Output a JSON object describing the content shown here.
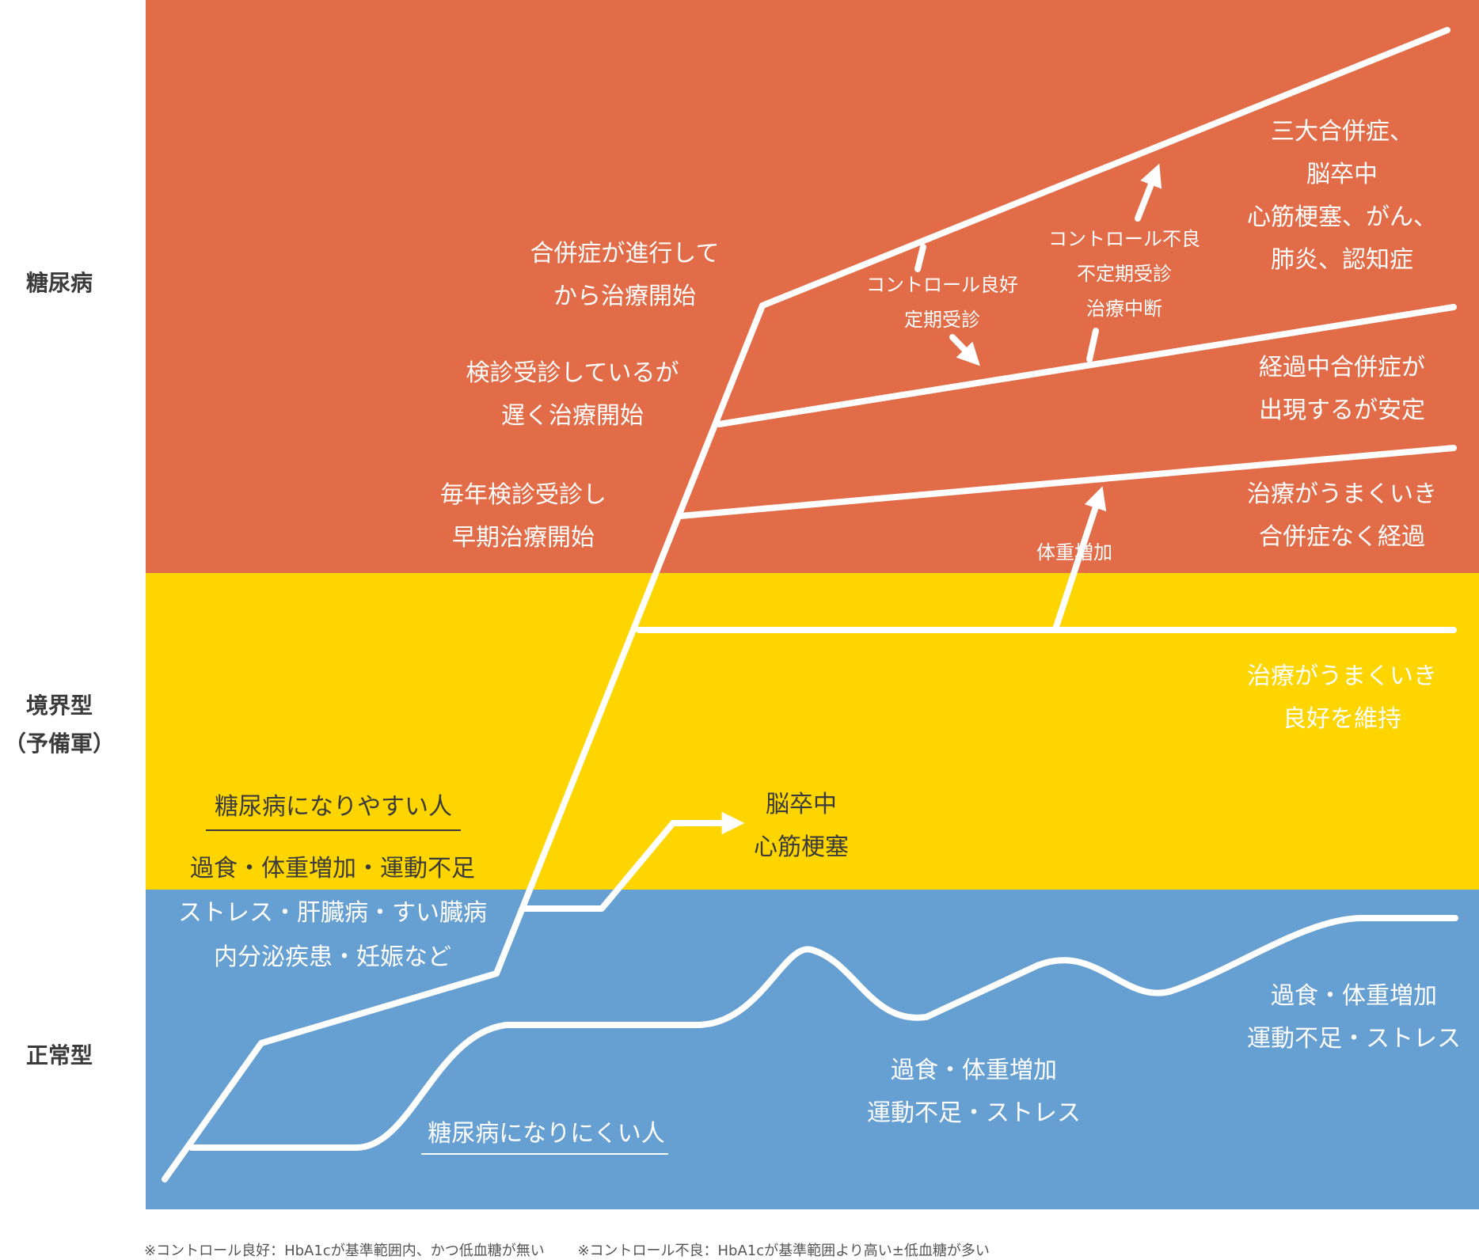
{
  "colors": {
    "diabetes_band": "#E26C48",
    "prediabetes_band": "#FFD500",
    "normal_band": "#669FD1",
    "line": "#FFFFFF",
    "side_label": "#3b3b3b"
  },
  "side_labels": {
    "diabetes": "糖尿病",
    "prediabetes": [
      "境界型",
      "（予備軍）"
    ],
    "normal": "正常型"
  },
  "outcomes": {
    "complications": [
      "三大合併症、",
      "脳卒中",
      "心筋梗塞、がん、",
      "肺炎、認知症"
    ],
    "stable": [
      "経過中合併症が",
      "出現するが安定"
    ],
    "no_complications": [
      "治療がうまくいき",
      "合併症なく経過"
    ],
    "maintain": [
      "治療がうまくいき",
      "良好を維持"
    ]
  },
  "paths": {
    "late_after_complications": [
      "合併症が進行して",
      "から治療開始"
    ],
    "late_treatment": [
      "検診受診しているが",
      "遅く治療開始"
    ],
    "early_treatment": [
      "毎年検診受診し",
      "早期治療開始"
    ]
  },
  "transitions": {
    "good_control": [
      "コントロール良好",
      "定期受診"
    ],
    "poor_control": [
      "コントロール不良",
      "不定期受診",
      "治療中断"
    ],
    "weight_gain": "体重増加"
  },
  "prone": {
    "header": "糖尿病になりやすい人",
    "factors": [
      "過食・体重増加・運動不足",
      "ストレス・肝臓病・すい臓病",
      "内分泌疾患・妊娠など"
    ]
  },
  "stroke": [
    "脳卒中",
    "心筋梗塞"
  ],
  "resistant": {
    "header": "糖尿病になりにくい人",
    "factors_mid": [
      "過食・体重増加",
      "運動不足・ストレス"
    ],
    "factors_right": [
      "過食・体重増加",
      "運動不足・ストレス"
    ]
  },
  "footnotes": [
    "※コントロール良好：HbA1cが基準範囲内、かつ低血糖が無い",
    "※コントロール不良：HbA1cが基準範囲より高い±低血糖が多い"
  ]
}
